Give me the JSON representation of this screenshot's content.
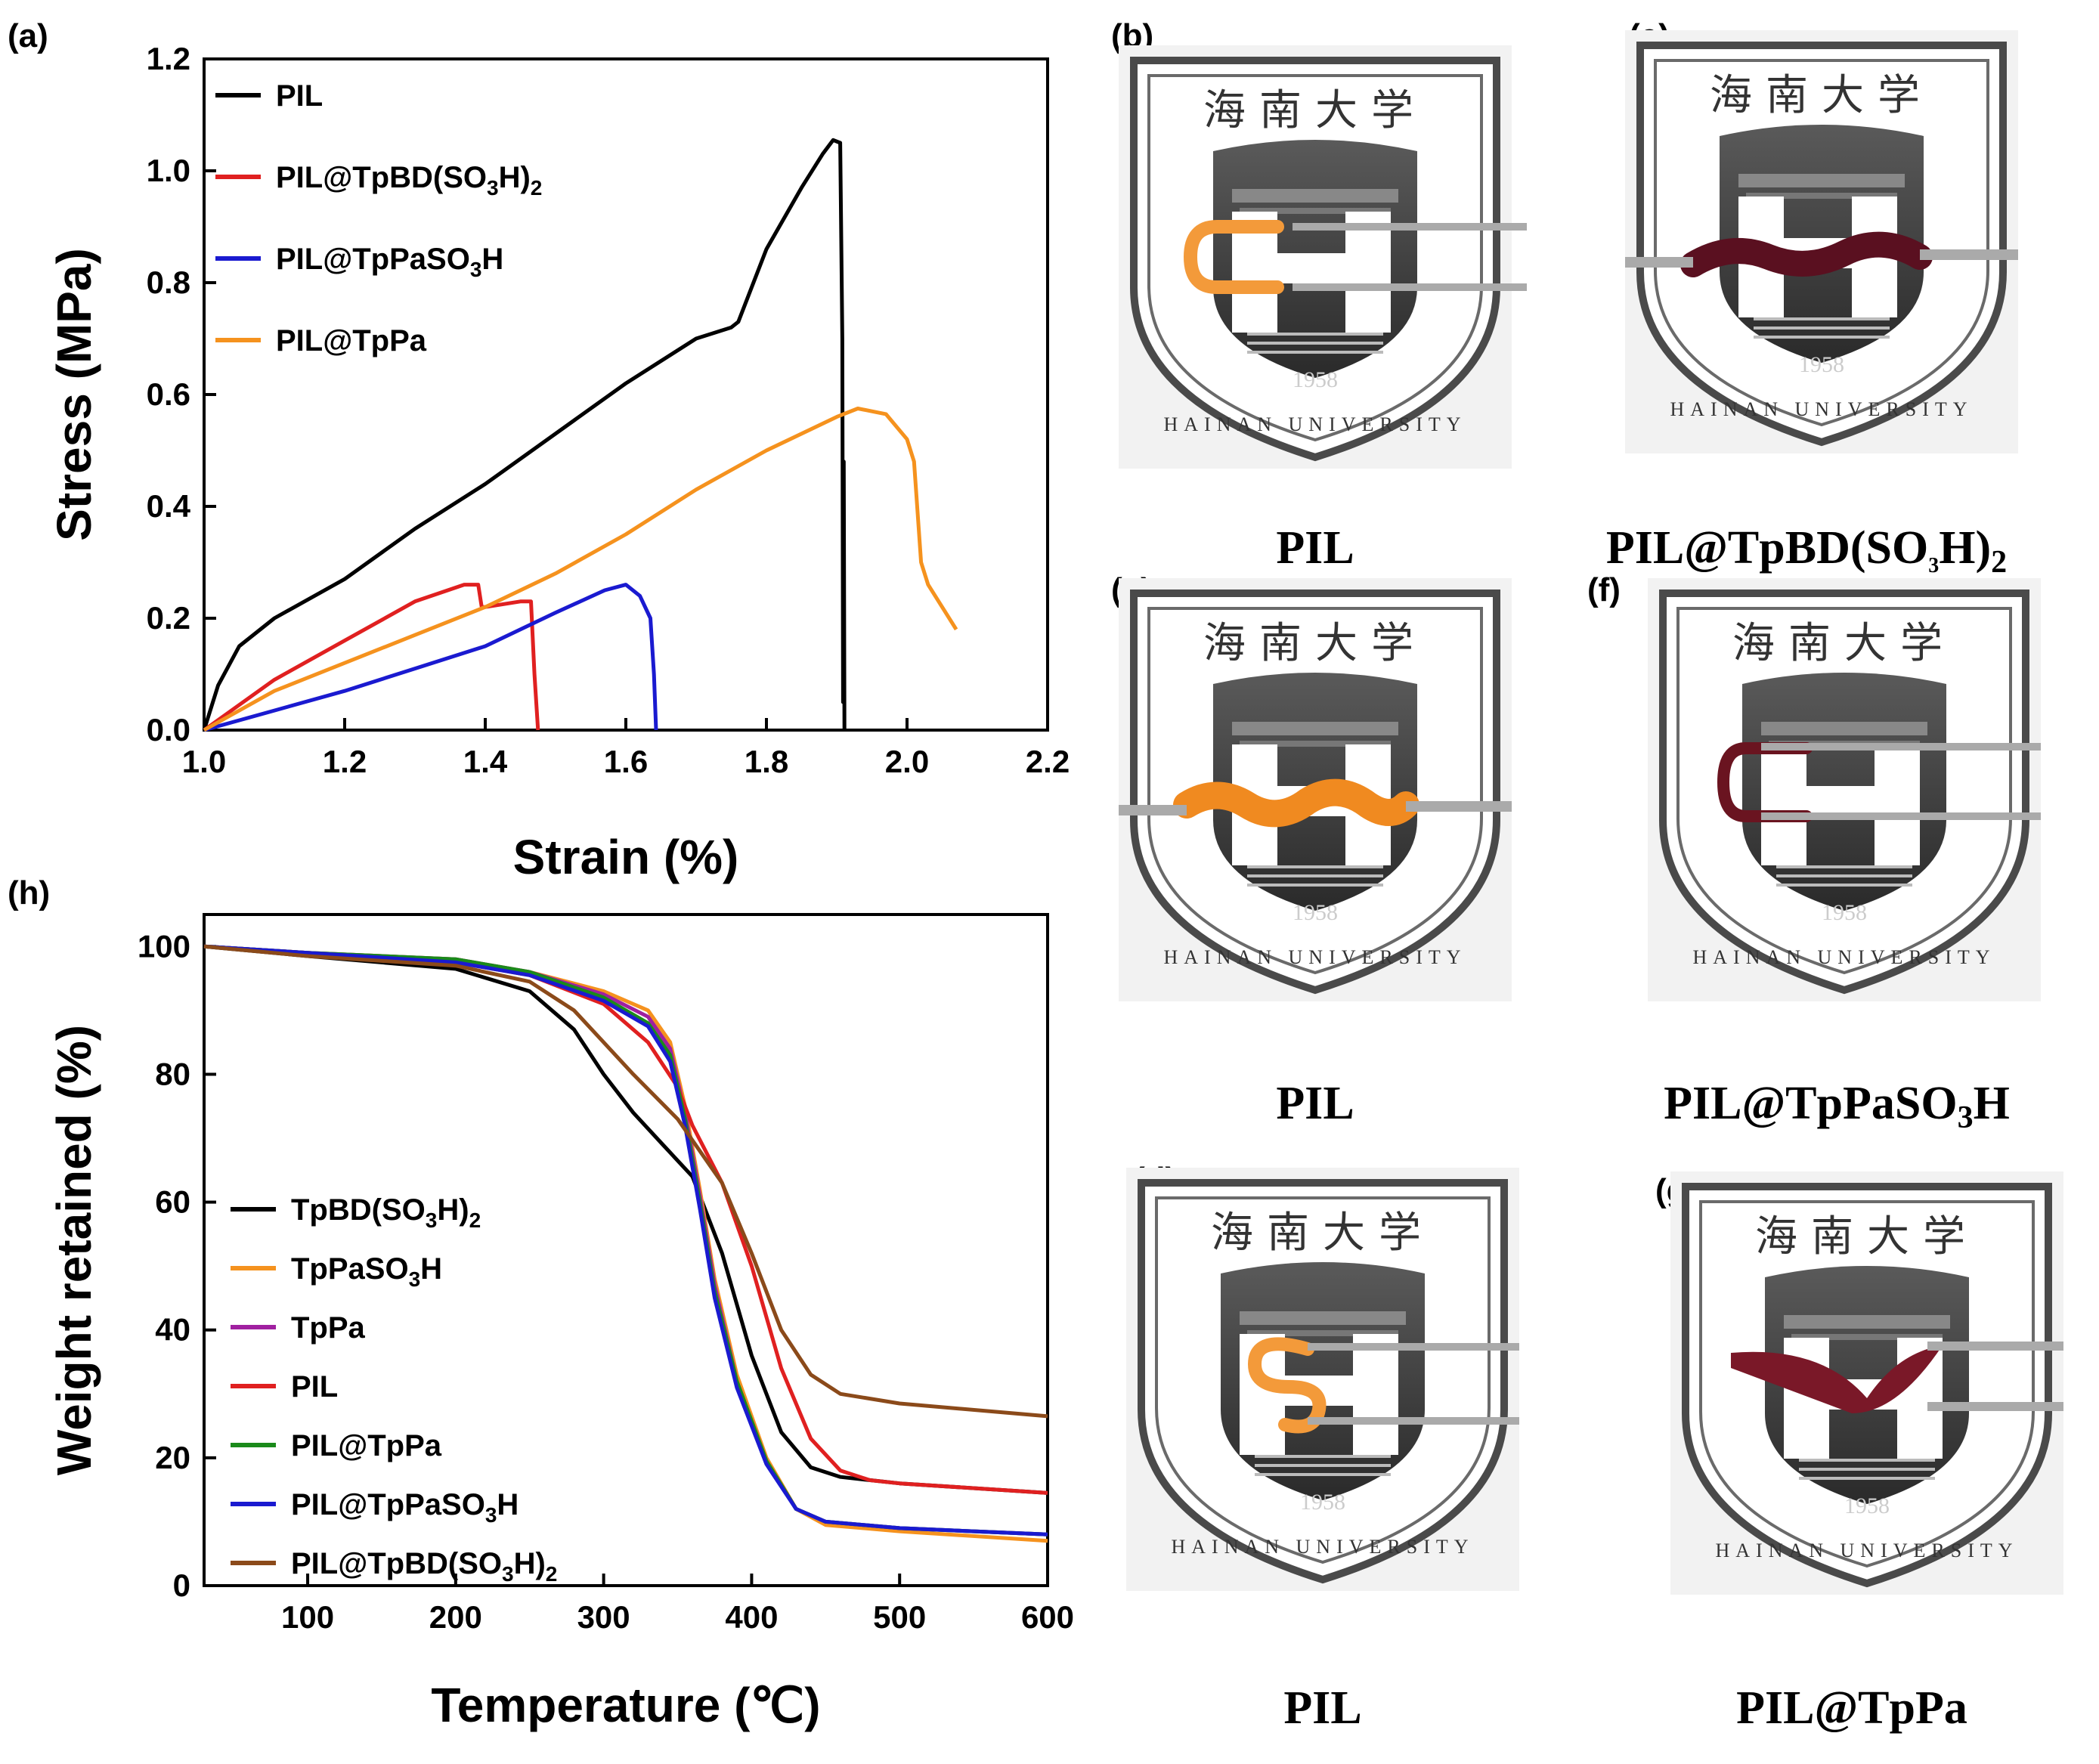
{
  "panels": {
    "a": "(a)",
    "b": "(b)",
    "c": "(c)",
    "d": "(d)",
    "e": "(e)",
    "f": "(f)",
    "g": "(g)",
    "h": "(h)"
  },
  "photos": {
    "b": {
      "caption": "PIL",
      "logo_chinese": "海南大学",
      "logo_english": "HAINAN UNIVERSITY",
      "logo_year": "1958",
      "logo_letters": "HN",
      "sample_color": "#f39a3a"
    },
    "c": {
      "caption": "PIL",
      "logo_chinese": "海南大学",
      "logo_english": "HAINAN UNIVERSITY",
      "logo_year": "1958",
      "logo_letters": "HN",
      "sample_color": "#f08a20"
    },
    "d": {
      "caption": "PIL",
      "logo_chinese": "海南大学",
      "logo_english": "HAINAN UNIVERSITY",
      "logo_year": "1958",
      "logo_letters": "HN",
      "sample_color": "#f39a3a"
    },
    "e": {
      "caption_main": "PIL@TpBD(SO",
      "caption_sub1": "3",
      "caption_mid": "H)",
      "caption_sub2": "2",
      "logo_chinese": "海南大学",
      "logo_english": "HAINAN UNIVERSITY",
      "logo_year": "1958",
      "logo_letters": "HN",
      "sample_color": "#5a1020"
    },
    "f": {
      "caption_main": "PIL@TpPaSO",
      "caption_sub1": "3",
      "caption_mid": "H",
      "logo_chinese": "海南大学",
      "logo_english": "HAINAN UNIVERSITY",
      "logo_year": "1958",
      "logo_letters": "HN",
      "sample_color": "#6a1420"
    },
    "g": {
      "caption": "PIL@TpPa",
      "logo_chinese": "海南大学",
      "logo_english": "HAINAN UNIVERSITY",
      "logo_year": "1958",
      "logo_letters": "HN",
      "sample_color": "#7a1828"
    }
  },
  "chart_data": [
    {
      "id": "a",
      "type": "line",
      "title": "",
      "xlabel": "Strain (%)",
      "ylabel": "Stress (MPa)",
      "xlim": [
        1.0,
        2.2
      ],
      "ylim": [
        0.0,
        1.2
      ],
      "xticks": [
        "1.0",
        "1.2",
        "1.4",
        "1.6",
        "1.8",
        "2.0",
        "2.2"
      ],
      "yticks": [
        "0.0",
        "0.2",
        "0.4",
        "0.6",
        "0.8",
        "1.0",
        "1.2"
      ],
      "legend_position": "top-left",
      "series": [
        {
          "name": "PIL",
          "label_parts": [
            "PIL"
          ],
          "color": "#000000",
          "x": [
            1.0,
            1.02,
            1.05,
            1.1,
            1.2,
            1.3,
            1.4,
            1.5,
            1.6,
            1.7,
            1.75,
            1.76,
            1.8,
            1.85,
            1.88,
            1.895,
            1.905,
            1.908,
            1.909,
            1.91,
            1.911
          ],
          "y": [
            0.0,
            0.08,
            0.15,
            0.2,
            0.27,
            0.36,
            0.44,
            0.53,
            0.62,
            0.7,
            0.72,
            0.73,
            0.86,
            0.97,
            1.03,
            1.055,
            1.05,
            0.7,
            0.05,
            0.48,
            0.0
          ]
        },
        {
          "name": "PIL@TpBD(SO3H)2",
          "label_parts": [
            "PIL@TpBD(SO",
            "3",
            "H)",
            "2"
          ],
          "color": "#e02020",
          "x": [
            1.0,
            1.1,
            1.2,
            1.3,
            1.37,
            1.39,
            1.395,
            1.4,
            1.45,
            1.465,
            1.47,
            1.475
          ],
          "y": [
            0.0,
            0.09,
            0.16,
            0.23,
            0.26,
            0.26,
            0.22,
            0.22,
            0.23,
            0.23,
            0.1,
            0.0
          ]
        },
        {
          "name": "PIL@TpPaSO3H",
          "label_parts": [
            "PIL@TpPaSO",
            "3",
            "H"
          ],
          "color": "#1a1ad0",
          "x": [
            1.0,
            1.1,
            1.2,
            1.3,
            1.4,
            1.5,
            1.57,
            1.6,
            1.62,
            1.635,
            1.64,
            1.643
          ],
          "y": [
            0.0,
            0.035,
            0.07,
            0.11,
            0.15,
            0.21,
            0.25,
            0.26,
            0.24,
            0.2,
            0.1,
            0.0
          ]
        },
        {
          "name": "PIL@TpPa",
          "label_parts": [
            "PIL@TpPa"
          ],
          "color": "#f5921e",
          "x": [
            1.0,
            1.1,
            1.2,
            1.3,
            1.4,
            1.5,
            1.6,
            1.7,
            1.8,
            1.9,
            1.93,
            1.97,
            2.0,
            2.01,
            2.02,
            2.03,
            2.05,
            2.07
          ],
          "y": [
            0.0,
            0.07,
            0.12,
            0.17,
            0.22,
            0.28,
            0.35,
            0.43,
            0.5,
            0.56,
            0.575,
            0.565,
            0.52,
            0.48,
            0.3,
            0.26,
            0.22,
            0.18
          ]
        }
      ]
    },
    {
      "id": "h",
      "type": "line",
      "title": "",
      "xlabel": "Temperature (℃)",
      "ylabel": "Weight retained (%)",
      "xlim": [
        30,
        600
      ],
      "ylim": [
        0,
        105
      ],
      "xticks": [
        "100",
        "200",
        "300",
        "400",
        "500",
        "600"
      ],
      "yticks": [
        "0",
        "20",
        "40",
        "60",
        "80",
        "100"
      ],
      "legend_position": "bottom-left",
      "series": [
        {
          "name": "TpBD(SO3H)2",
          "label_parts": [
            "TpBD(SO",
            "3",
            "H)",
            "2"
          ],
          "color": "#000000",
          "x": [
            30,
            100,
            200,
            250,
            280,
            300,
            320,
            340,
            360,
            380,
            400,
            420,
            440,
            460,
            500,
            600
          ],
          "y": [
            100,
            98.5,
            96.5,
            93,
            87,
            80,
            74,
            69,
            64,
            52,
            36,
            24,
            18.5,
            17,
            16,
            14.5
          ]
        },
        {
          "name": "TpPaSO3H",
          "label_parts": [
            "TpPaSO",
            "3",
            "H"
          ],
          "color": "#f5921e",
          "x": [
            30,
            100,
            200,
            250,
            300,
            330,
            345,
            355,
            365,
            375,
            390,
            410,
            430,
            450,
            500,
            600
          ],
          "y": [
            100,
            99,
            98,
            96,
            93,
            90,
            85,
            75,
            62,
            48,
            33,
            20,
            12,
            9.5,
            8.5,
            7
          ]
        },
        {
          "name": "TpPa",
          "label_parts": [
            "TpPa"
          ],
          "color": "#a020a0",
          "x": [
            30,
            100,
            200,
            250,
            300,
            330,
            345,
            355,
            365,
            375,
            390,
            410,
            430,
            450,
            500,
            600
          ],
          "y": [
            100,
            99,
            98,
            96,
            92.5,
            89,
            84,
            74,
            61,
            47,
            32,
            19.5,
            12,
            10,
            9,
            8
          ]
        },
        {
          "name": "PIL",
          "label_parts": [
            "PIL"
          ],
          "color": "#e02020",
          "x": [
            30,
            100,
            200,
            250,
            300,
            330,
            350,
            360,
            380,
            400,
            420,
            440,
            460,
            480,
            500,
            600
          ],
          "y": [
            100,
            99,
            97.5,
            95.5,
            91,
            85,
            78,
            72,
            63,
            50,
            34,
            23,
            18,
            16.5,
            16,
            14.5
          ]
        },
        {
          "name": "PIL@TpPa",
          "label_parts": [
            "PIL@TpPa"
          ],
          "color": "#1a8a1a",
          "x": [
            30,
            100,
            200,
            250,
            300,
            330,
            345,
            355,
            365,
            375,
            390,
            410,
            430,
            450,
            500,
            600
          ],
          "y": [
            100,
            99,
            98,
            96,
            92,
            88,
            83,
            73,
            60,
            46,
            32,
            19.5,
            12,
            10,
            9,
            8
          ]
        },
        {
          "name": "PIL@TpPaSO3H",
          "label_parts": [
            "PIL@TpPaSO",
            "3",
            "H"
          ],
          "color": "#1a1ad0",
          "x": [
            30,
            100,
            200,
            250,
            300,
            330,
            345,
            355,
            365,
            375,
            390,
            410,
            430,
            450,
            500,
            600
          ],
          "y": [
            100,
            99,
            97.5,
            95.5,
            91.5,
            87.5,
            82,
            72,
            59,
            45,
            31,
            19,
            12,
            10,
            9,
            8
          ]
        },
        {
          "name": "PIL@TpBD(SO3H)2",
          "label_parts": [
            "PIL@TpBD(SO",
            "3",
            "H)",
            "2"
          ],
          "color": "#8b4a1a",
          "x": [
            30,
            100,
            200,
            250,
            280,
            300,
            320,
            350,
            380,
            400,
            420,
            440,
            460,
            500,
            600
          ],
          "y": [
            100,
            98.5,
            97,
            94.5,
            90,
            85,
            80,
            73,
            63,
            52,
            40,
            33,
            30,
            28.5,
            26.5
          ]
        }
      ]
    }
  ]
}
